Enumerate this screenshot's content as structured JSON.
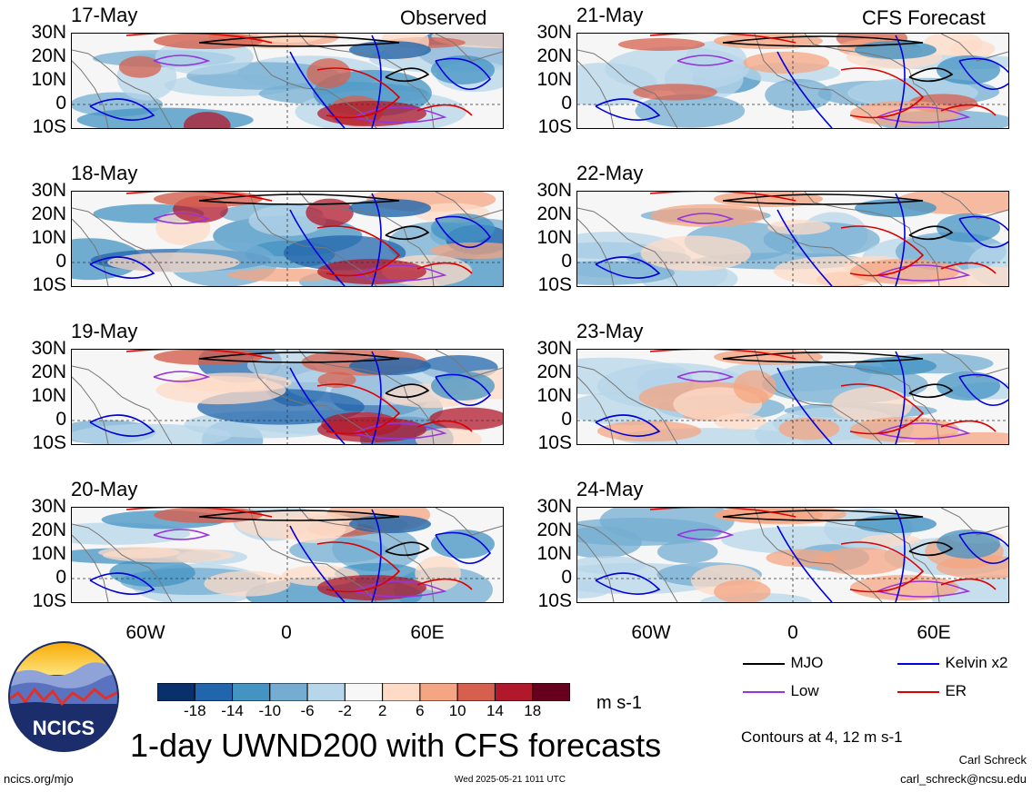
{
  "left": {
    "header": "Observed",
    "panels": [
      {
        "date": "17-May",
        "intensity": 0.9
      },
      {
        "date": "18-May",
        "intensity": 1.0
      },
      {
        "date": "19-May",
        "intensity": 0.95
      },
      {
        "date": "20-May",
        "intensity": 0.8
      }
    ]
  },
  "right": {
    "header": "CFS Forecast",
    "panels": [
      {
        "date": "21-May",
        "intensity": 0.55
      },
      {
        "date": "22-May",
        "intensity": 0.5
      },
      {
        "date": "23-May",
        "intensity": 0.5
      },
      {
        "date": "24-May",
        "intensity": 0.45
      }
    ]
  },
  "lat_labels": [
    "30N",
    "20N",
    "10N",
    "0",
    "10S"
  ],
  "lon_labels": [
    "60W",
    "0",
    "60E"
  ],
  "colorbar": {
    "colors": [
      "#08306b",
      "#2166ac",
      "#4393c3",
      "#74add1",
      "#b7d6ea",
      "#f7f7f7",
      "#fddbc7",
      "#f4a582",
      "#d6604d",
      "#b2182b",
      "#67001f"
    ],
    "labels": [
      "-18",
      "-14",
      "-10",
      "-6",
      "-2",
      "2",
      "6",
      "10",
      "14",
      "18"
    ],
    "units": "m s-1"
  },
  "legend": [
    {
      "label": "MJO",
      "color": "#000000"
    },
    {
      "label": "Kelvin x2",
      "color": "#0000dd"
    },
    {
      "label": "Low",
      "color": "#9933dd"
    },
    {
      "label": "ER",
      "color": "#dd0000"
    }
  ],
  "contours_note": "Contours at 4, 12 m s-1",
  "title": "1-day UWND200 with CFS forecasts",
  "logo_text": "NCICS",
  "footer": {
    "site": "ncics.org/mjo",
    "timestamp": "Wed 2025-05-21 1011 UTC",
    "author": "Carl Schreck",
    "email": "carl_schreck@ncsu.edu"
  }
}
